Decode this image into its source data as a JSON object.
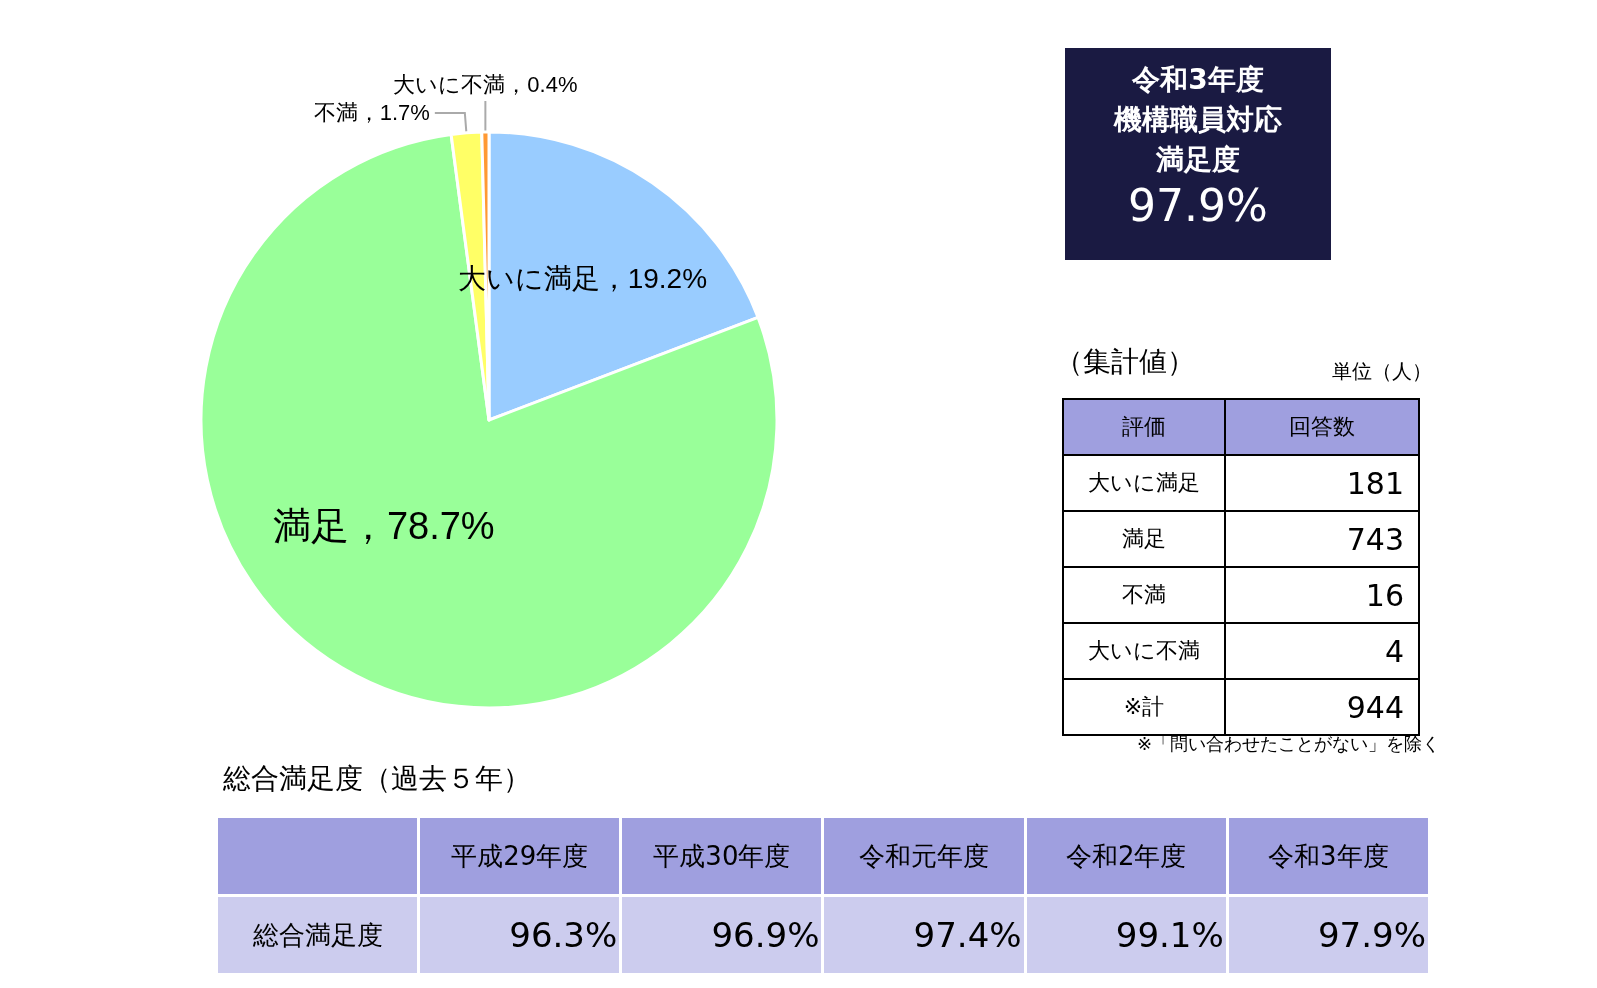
{
  "chart_data": [
    {
      "type": "pie",
      "categories": [
        "大いに満足",
        "満足",
        "不満",
        "大いに不満"
      ],
      "values": [
        19.2,
        78.7,
        1.7,
        0.4
      ],
      "colors": [
        "#99ccff",
        "#99ff99",
        "#ffff66",
        "#ff9933"
      ],
      "value_labels": [
        "19.2%",
        "78.7%",
        "1.7%",
        "0.4%"
      ],
      "legend": false
    },
    {
      "type": "other",
      "title": "令和3年度",
      "subtitle": "機構職員対応満足度",
      "annotations": [
        "97.9%"
      ]
    },
    {
      "type": "other",
      "title": "（集計値）",
      "subtitle": "単位（人）",
      "xlabel": "評価",
      "ylabel": "回答数",
      "categories": [
        "大いに満足",
        "満足",
        "不満",
        "大いに不満",
        "※計"
      ],
      "values": [
        181,
        743,
        16,
        4,
        944
      ],
      "data_labels": true,
      "annotations": [
        "※「問い合わせたことがない」を除く"
      ]
    },
    {
      "type": "other",
      "title": "総合満足度（過去５年）",
      "ylabel": "総合満足度",
      "categories": [
        "平成29年度",
        "平成30年度",
        "令和元年度",
        "令和2年度",
        "令和3年度"
      ],
      "values": [
        96.3,
        96.9,
        97.4,
        99.1,
        97.9
      ],
      "value_labels": [
        "96.3%",
        "96.9%",
        "97.4%",
        "99.1%",
        "97.9%"
      ]
    }
  ]
}
